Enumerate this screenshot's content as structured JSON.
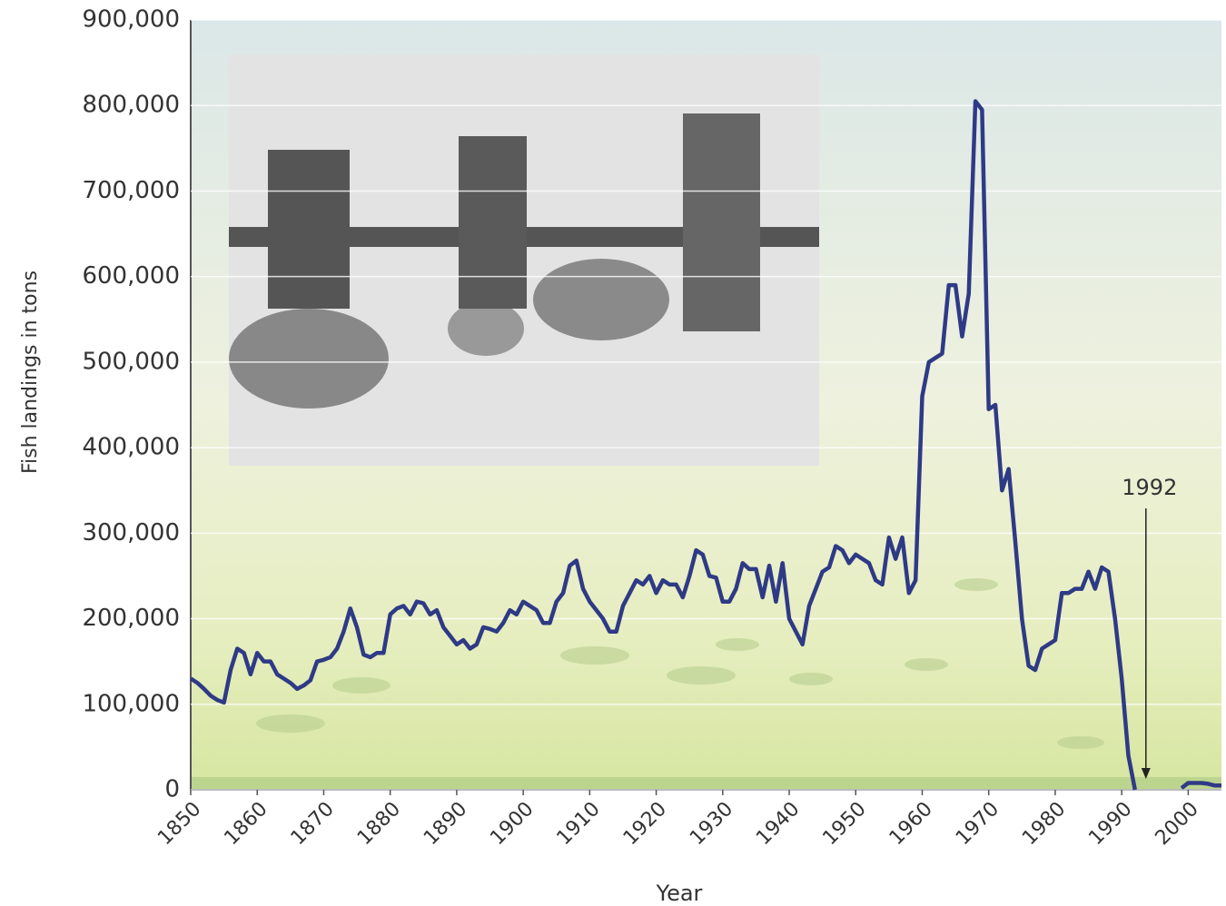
{
  "chart_data": {
    "type": "line",
    "ylabel": "Fish landings in tons",
    "xlabel": "Year",
    "x": [
      1850,
      1851,
      1852,
      1853,
      1854,
      1855,
      1856,
      1857,
      1858,
      1859,
      1860,
      1861,
      1862,
      1863,
      1864,
      1865,
      1866,
      1867,
      1868,
      1869,
      1870,
      1871,
      1872,
      1873,
      1874,
      1875,
      1876,
      1877,
      1878,
      1879,
      1880,
      1881,
      1882,
      1883,
      1884,
      1885,
      1886,
      1887,
      1888,
      1889,
      1890,
      1891,
      1892,
      1893,
      1894,
      1895,
      1896,
      1897,
      1898,
      1899,
      1900,
      1901,
      1902,
      1903,
      1904,
      1905,
      1906,
      1907,
      1908,
      1909,
      1910,
      1911,
      1912,
      1913,
      1914,
      1915,
      1916,
      1917,
      1918,
      1919,
      1920,
      1921,
      1922,
      1923,
      1924,
      1925,
      1926,
      1927,
      1928,
      1929,
      1930,
      1931,
      1932,
      1933,
      1934,
      1935,
      1936,
      1937,
      1938,
      1939,
      1940,
      1941,
      1942,
      1943,
      1944,
      1945,
      1946,
      1947,
      1948,
      1949,
      1950,
      1951,
      1952,
      1953,
      1954,
      1955,
      1956,
      1957,
      1958,
      1959,
      1960,
      1961,
      1962,
      1963,
      1964,
      1965,
      1966,
      1967,
      1968,
      1969,
      1970,
      1971,
      1972,
      1973,
      1974,
      1975,
      1976,
      1977,
      1978,
      1979,
      1980,
      1981,
      1982,
      1983,
      1984,
      1985,
      1986,
      1987,
      1988,
      1989,
      1990,
      1991,
      1992,
      1993,
      1994,
      1995,
      1996,
      1997,
      1998,
      1999,
      2000,
      2001,
      2002,
      2003,
      2004,
      2005
    ],
    "series": [
      {
        "name": "Fish landings",
        "color": "#2f3a86",
        "values": [
          130000,
          125000,
          118000,
          110000,
          105000,
          102000,
          140000,
          165000,
          160000,
          135000,
          160000,
          150000,
          150000,
          135000,
          130000,
          125000,
          118000,
          122000,
          128000,
          150000,
          152000,
          155000,
          165000,
          185000,
          212000,
          190000,
          158000,
          155000,
          160000,
          160000,
          205000,
          212000,
          215000,
          205000,
          220000,
          218000,
          205000,
          210000,
          190000,
          180000,
          170000,
          175000,
          165000,
          170000,
          190000,
          188000,
          185000,
          195000,
          210000,
          205000,
          220000,
          215000,
          210000,
          195000,
          195000,
          220000,
          230000,
          262000,
          268000,
          235000,
          220000,
          210000,
          200000,
          185000,
          185000,
          215000,
          230000,
          245000,
          240000,
          250000,
          230000,
          245000,
          240000,
          240000,
          225000,
          250000,
          280000,
          275000,
          250000,
          248000,
          220000,
          220000,
          235000,
          265000,
          258000,
          258000,
          225000,
          262000,
          220000,
          265000,
          200000,
          185000,
          170000,
          215000,
          235000,
          255000,
          260000,
          285000,
          280000,
          265000,
          275000,
          270000,
          265000,
          245000,
          240000,
          295000,
          270000,
          295000,
          230000,
          245000,
          460000,
          500000,
          505000,
          510000,
          590000,
          590000,
          530000,
          580000,
          805000,
          795000,
          445000,
          450000,
          350000,
          375000,
          290000,
          200000,
          145000,
          140000,
          165000,
          170000,
          175000,
          230000,
          230000,
          235000,
          235000,
          255000,
          235000,
          260000,
          255000,
          200000,
          130000,
          40000,
          0,
          null,
          null,
          null,
          null,
          null,
          null,
          2000,
          8000,
          8000,
          8000,
          7000,
          5000,
          5000
        ]
      }
    ],
    "xlim": [
      1850,
      2005
    ],
    "xticks": [
      1850,
      1860,
      1870,
      1880,
      1890,
      1900,
      1910,
      1920,
      1930,
      1940,
      1950,
      1960,
      1970,
      1980,
      1990,
      2000
    ],
    "ylim": [
      0,
      900000
    ],
    "yticks": [
      {
        "value": 0,
        "label": "0"
      },
      {
        "value": 100000,
        "label": "100,000"
      },
      {
        "value": 200000,
        "label": "200,000"
      },
      {
        "value": 300000,
        "label": "300,000"
      },
      {
        "value": 400000,
        "label": "400,000"
      },
      {
        "value": 500000,
        "label": "500,000"
      },
      {
        "value": 600000,
        "label": "600,000"
      },
      {
        "value": 700000,
        "label": "700,000"
      },
      {
        "value": 800000,
        "label": "800,000"
      },
      {
        "value": 900000,
        "label": "900,000"
      }
    ],
    "grid": true,
    "annotations": [
      {
        "label": "1992",
        "x": 1992
      }
    ]
  }
}
